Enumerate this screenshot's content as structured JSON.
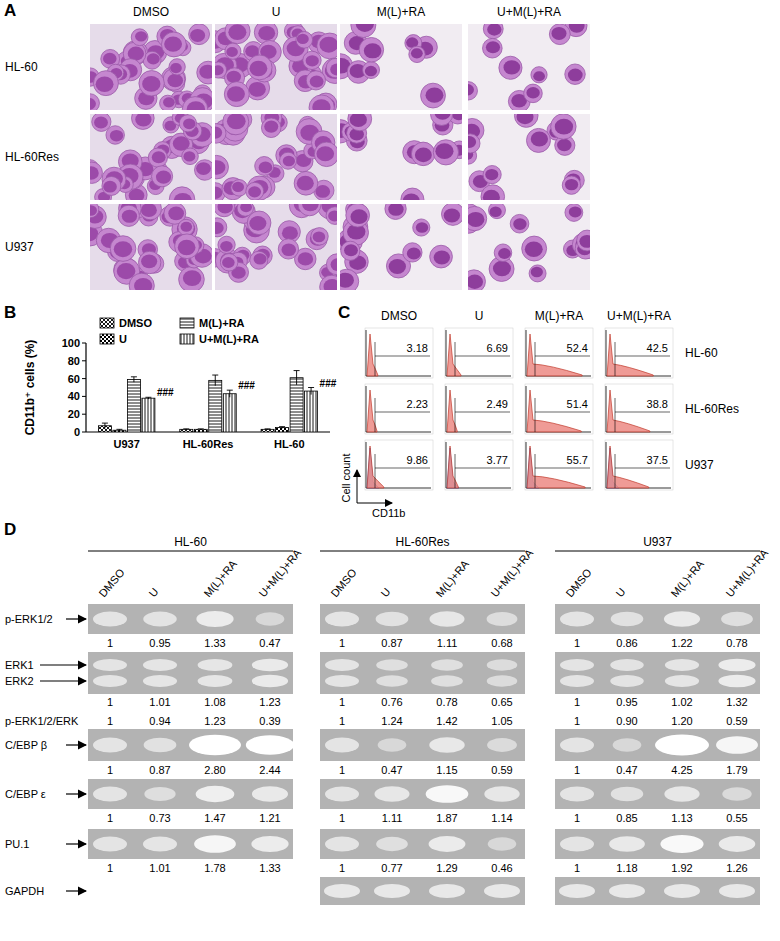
{
  "figure": {
    "panel_labels": [
      "A",
      "B",
      "C",
      "D"
    ]
  },
  "panel_a": {
    "columns": [
      "DMSO",
      "U",
      "M(L)+RA",
      "U+M(L)+RA"
    ],
    "rows": [
      "HL-60",
      "HL-60Res",
      "U937"
    ]
  },
  "chart_data": {
    "type": "bar",
    "y_label": "CD11b⁺ cells (%)",
    "categories": [
      "U937",
      "HL-60Res",
      "HL-60"
    ],
    "series": [
      {
        "name": "DMSO",
        "color": "#000000",
        "values": [
          7,
          3,
          3
        ],
        "errors": [
          3,
          0.5,
          0.5
        ]
      },
      {
        "name": "U",
        "color": "#000000",
        "values": [
          2,
          3,
          5
        ],
        "errors": [
          1,
          0.5,
          1
        ]
      },
      {
        "name": "M(L)+RA",
        "color": "#000000",
        "values": [
          59,
          58,
          61
        ],
        "errors": [
          3,
          6,
          8
        ]
      },
      {
        "name": "U+M(L)+RA",
        "color": "#000000",
        "values": [
          38,
          43,
          46
        ],
        "errors": [
          1,
          4,
          4
        ]
      }
    ],
    "ylim": [
      0,
      100
    ],
    "yticks": [
      0,
      20,
      40,
      60,
      80,
      100
    ],
    "annotations": [
      "###",
      "###",
      "###"
    ],
    "legend": "top",
    "grid": false
  },
  "panel_c": {
    "columns": [
      "DMSO",
      "U",
      "M(L)+RA",
      "U+M(L)+RA"
    ],
    "rows": [
      "HL-60",
      "HL-60Res",
      "U937"
    ],
    "values": [
      [
        3.18,
        6.69,
        52.4,
        42.5
      ],
      [
        2.23,
        2.49,
        51.4,
        38.8
      ],
      [
        9.86,
        3.77,
        55.7,
        37.5
      ]
    ],
    "overlay": [
      false,
      false,
      true
    ],
    "x_label": "CD11b",
    "y_label": "Cell count"
  },
  "panel_d": {
    "groups": [
      "HL-60",
      "HL-60Res",
      "U937"
    ],
    "lanes": [
      "DMSO",
      "U",
      "M(L)+RA",
      "U+M(L)+RA"
    ],
    "blots": [
      {
        "name": "p-ERK1/2",
        "values": [
          [
            "1",
            "0.95",
            "1.33",
            "0.47"
          ],
          [
            "1",
            "0.87",
            "1.11",
            "0.68"
          ],
          [
            "1",
            "0.86",
            "1.22",
            "0.78"
          ]
        ]
      },
      {
        "name": "ERK1",
        "name2": "ERK2",
        "values": [
          [
            "1",
            "1.01",
            "1.08",
            "1.23"
          ],
          [
            "1",
            "0.76",
            "0.78",
            "0.65"
          ],
          [
            "1",
            "0.95",
            "1.02",
            "1.32"
          ]
        ],
        "ratio_name": "p-ERK1/2/ERK",
        "ratio_values": [
          [
            "1",
            "0.94",
            "1.23",
            "0.39"
          ],
          [
            "1",
            "1.24",
            "1.42",
            "1.05"
          ],
          [
            "1",
            "0.90",
            "1.20",
            "0.59"
          ]
        ]
      },
      {
        "name": "C/EBP β",
        "values": [
          [
            "1",
            "0.87",
            "2.80",
            "2.44"
          ],
          [
            "1",
            "0.47",
            "1.15",
            "0.59"
          ],
          [
            "1",
            "0.47",
            "4.25",
            "1.79"
          ]
        ]
      },
      {
        "name": "C/EBP ε",
        "values": [
          [
            "1",
            "0.73",
            "1.47",
            "1.21"
          ],
          [
            "1",
            "1.11",
            "1.87",
            "1.14"
          ],
          [
            "1",
            "0.85",
            "1.13",
            "0.55"
          ]
        ]
      },
      {
        "name": "PU.1",
        "values": [
          [
            "1",
            "1.01",
            "1.78",
            "1.33"
          ],
          [
            "1",
            "0.77",
            "1.29",
            "0.46"
          ],
          [
            "1",
            "1.18",
            "1.92",
            "1.26"
          ]
        ]
      },
      {
        "name": "GAPDH",
        "present": [
          false,
          true,
          true
        ]
      }
    ]
  }
}
